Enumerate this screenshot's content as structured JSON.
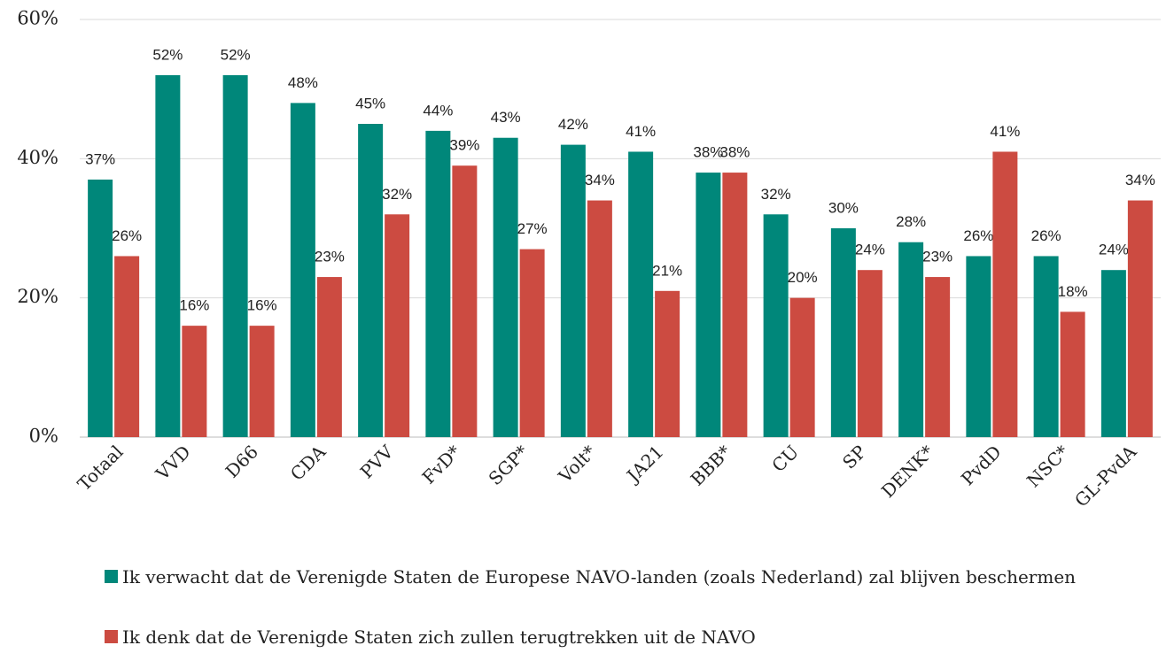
{
  "chart_data": {
    "type": "bar",
    "categories": [
      "Totaal",
      "VVD",
      "D66",
      "CDA",
      "PVV",
      "FvD*",
      "SGP*",
      "Volt*",
      "JA21",
      "BBB*",
      "CU",
      "SP",
      "DENK*",
      "PvdD",
      "NSC*",
      "GL-PvdA"
    ],
    "series": [
      {
        "name": "Ik verwacht dat de Verenigde Staten de Europese NAVO-landen (zoals Nederland) zal blijven beschermen",
        "color": "#00877a",
        "values": [
          37,
          52,
          52,
          48,
          45,
          44,
          43,
          42,
          41,
          38,
          32,
          30,
          28,
          26,
          26,
          24
        ],
        "value_labels": [
          "37%",
          "52%",
          "52%",
          "48%",
          "45%",
          "44%",
          "43%",
          "42%",
          "41%",
          "38%",
          "32%",
          "30%",
          "28%",
          "26%",
          "26%",
          "24%"
        ]
      },
      {
        "name": "Ik denk dat de Verenigde Staten zich zullen terugtrekken uit de NAVO",
        "color": "#cc4b41",
        "values": [
          26,
          16,
          16,
          23,
          32,
          39,
          27,
          34,
          21,
          38,
          20,
          24,
          23,
          41,
          18,
          34
        ],
        "value_labels": [
          "26%",
          "16%",
          "16%",
          "23%",
          "32%",
          "39%",
          "27%",
          "34%",
          "21%",
          "38%",
          "20%",
          "24%",
          "23%",
          "41%",
          "18%",
          "34%"
        ]
      }
    ],
    "ylim": [
      0,
      60
    ],
    "yticks": [
      {
        "value": 0,
        "label": "0%"
      },
      {
        "value": 20,
        "label": "20%"
      },
      {
        "value": 40,
        "label": "40%"
      },
      {
        "value": 60,
        "label": "60%"
      }
    ],
    "grid": true,
    "legend": "bottom"
  }
}
